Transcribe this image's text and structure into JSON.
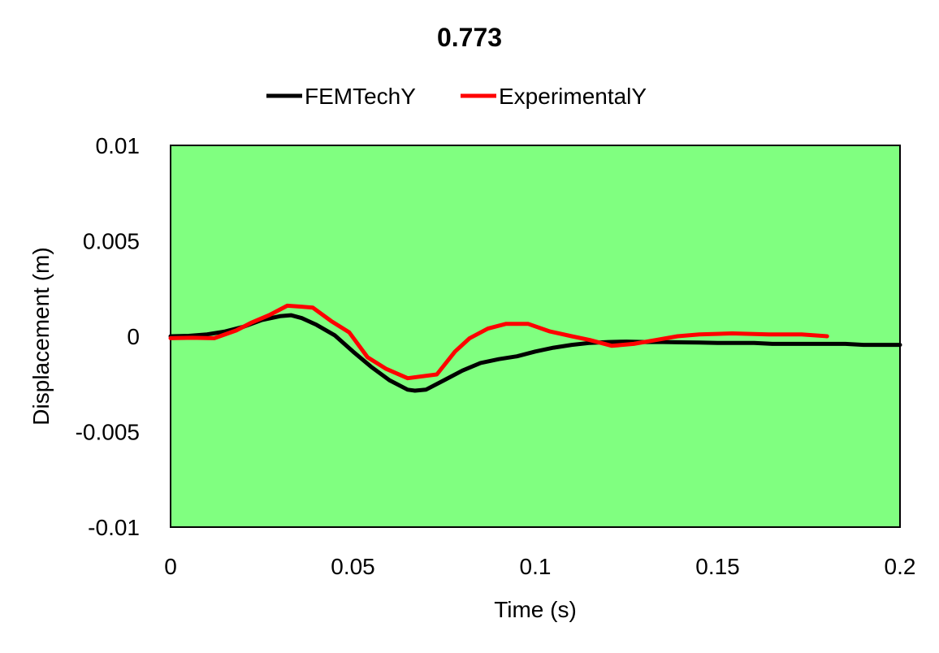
{
  "chart_data": {
    "type": "line",
    "title": "0.773",
    "xlabel": "Time (s)",
    "ylabel": "Displacement (m)",
    "xlim": [
      0,
      0.2
    ],
    "ylim": [
      -0.01,
      0.01
    ],
    "x_ticks": [
      0,
      0.05,
      0.1,
      0.15,
      0.2
    ],
    "x_tick_labels": [
      "0",
      "0.05",
      "0.1",
      "0.15",
      "0.2"
    ],
    "y_ticks": [
      0.01,
      0.005,
      0,
      -0.005,
      -0.01
    ],
    "y_tick_labels": [
      "0.01",
      "0.005",
      "0",
      "-0.005",
      "-0.01"
    ],
    "grid": false,
    "legend_position": "top",
    "plot_background": "#80ff80",
    "series": [
      {
        "name": "FEMTechY",
        "color": "#000000",
        "points": [
          [
            0,
            0
          ],
          [
            0.005,
            2e-05
          ],
          [
            0.01,
            0.0001
          ],
          [
            0.015,
            0.00025
          ],
          [
            0.02,
            0.0005
          ],
          [
            0.025,
            0.00085
          ],
          [
            0.03,
            0.00105
          ],
          [
            0.033,
            0.0011
          ],
          [
            0.036,
            0.00095
          ],
          [
            0.04,
            0.0006
          ],
          [
            0.045,
            5e-05
          ],
          [
            0.05,
            -0.0008
          ],
          [
            0.055,
            -0.0016
          ],
          [
            0.06,
            -0.0023
          ],
          [
            0.065,
            -0.0028
          ],
          [
            0.067,
            -0.00285
          ],
          [
            0.07,
            -0.0028
          ],
          [
            0.075,
            -0.0023
          ],
          [
            0.08,
            -0.0018
          ],
          [
            0.085,
            -0.0014
          ],
          [
            0.09,
            -0.0012
          ],
          [
            0.095,
            -0.00105
          ],
          [
            0.1,
            -0.0008
          ],
          [
            0.105,
            -0.0006
          ],
          [
            0.11,
            -0.00045
          ],
          [
            0.115,
            -0.00035
          ],
          [
            0.12,
            -0.0003
          ],
          [
            0.125,
            -0.00028
          ],
          [
            0.13,
            -0.0003
          ],
          [
            0.135,
            -0.0003
          ],
          [
            0.14,
            -0.00032
          ],
          [
            0.145,
            -0.00033
          ],
          [
            0.15,
            -0.00035
          ],
          [
            0.155,
            -0.00035
          ],
          [
            0.16,
            -0.00035
          ],
          [
            0.165,
            -0.0004
          ],
          [
            0.17,
            -0.0004
          ],
          [
            0.175,
            -0.0004
          ],
          [
            0.18,
            -0.0004
          ],
          [
            0.185,
            -0.0004
          ],
          [
            0.19,
            -0.00045
          ],
          [
            0.195,
            -0.00045
          ],
          [
            0.2,
            -0.00045
          ]
        ]
      },
      {
        "name": "ExperimentalY",
        "color": "#ff0000",
        "points": [
          [
            0,
            -0.0001
          ],
          [
            0.006,
            -8e-05
          ],
          [
            0.012,
            -0.0001
          ],
          [
            0.018,
            0.0003
          ],
          [
            0.022,
            0.0007
          ],
          [
            0.027,
            0.0011
          ],
          [
            0.032,
            0.0016
          ],
          [
            0.036,
            0.00155
          ],
          [
            0.039,
            0.0015
          ],
          [
            0.044,
            0.0008
          ],
          [
            0.049,
            0.0002
          ],
          [
            0.054,
            -0.0011
          ],
          [
            0.059,
            -0.0017
          ],
          [
            0.065,
            -0.0022
          ],
          [
            0.073,
            -0.002
          ],
          [
            0.078,
            -0.0008
          ],
          [
            0.082,
            -0.0001
          ],
          [
            0.087,
            0.0004
          ],
          [
            0.092,
            0.00065
          ],
          [
            0.098,
            0.00065
          ],
          [
            0.104,
            0.00025
          ],
          [
            0.11,
            0
          ],
          [
            0.115,
            -0.0002
          ],
          [
            0.121,
            -0.0005
          ],
          [
            0.127,
            -0.0004
          ],
          [
            0.133,
            -0.0002
          ],
          [
            0.139,
            0
          ],
          [
            0.145,
            0.0001
          ],
          [
            0.154,
            0.00015
          ],
          [
            0.164,
            0.0001
          ],
          [
            0.173,
            0.0001
          ],
          [
            0.18,
            0
          ]
        ]
      }
    ]
  }
}
